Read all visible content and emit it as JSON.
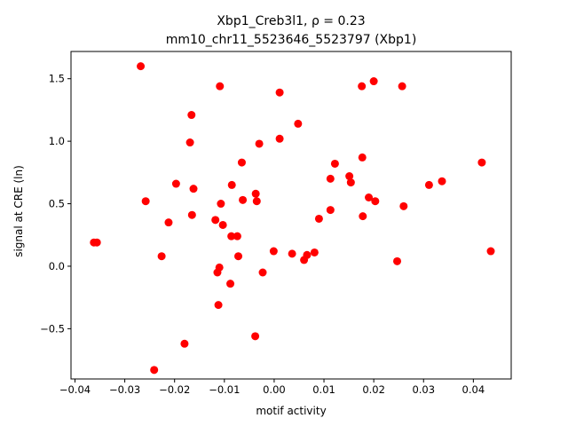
{
  "chart_data": {
    "type": "scatter",
    "title_line1": "Xbp1_Creb3l1, ρ = 0.23",
    "title_line2": "mm10_chr11_5523646_5523797 (Xbp1)",
    "xlabel": "motif activity",
    "ylabel": "signal at CRE (ln)",
    "xlim": [
      -0.0408,
      0.0476
    ],
    "ylim": [
      -0.902,
      1.718
    ],
    "grid": false,
    "marker_color": "#ff0000",
    "x_ticks": [
      -0.04,
      -0.03,
      -0.02,
      -0.01,
      0.0,
      0.01,
      0.02,
      0.03,
      0.04
    ],
    "x_tick_labels": [
      "−0.04",
      "−0.03",
      "−0.02",
      "−0.01",
      "0.00",
      "0.01",
      "0.02",
      "0.03",
      "0.04"
    ],
    "y_ticks": [
      -0.5,
      0.0,
      0.5,
      1.0,
      1.5
    ],
    "y_tick_labels": [
      "−0.5",
      "0.0",
      "0.5",
      "1.0",
      "1.5"
    ],
    "points": [
      [
        -0.0268,
        1.6
      ],
      [
        -0.0109,
        1.44
      ],
      [
        0.0011,
        1.39
      ],
      [
        0.0176,
        1.44
      ],
      [
        0.02,
        1.48
      ],
      [
        0.0257,
        1.44
      ],
      [
        -0.0166,
        1.21
      ],
      [
        0.0048,
        1.14
      ],
      [
        -0.0169,
        0.99
      ],
      [
        0.0011,
        1.02
      ],
      [
        -0.003,
        0.98
      ],
      [
        -0.0065,
        0.83
      ],
      [
        0.0122,
        0.82
      ],
      [
        0.0177,
        0.87
      ],
      [
        0.0417,
        0.83
      ],
      [
        -0.0197,
        0.66
      ],
      [
        -0.0162,
        0.62
      ],
      [
        -0.0085,
        0.65
      ],
      [
        -0.0037,
        0.58
      ],
      [
        0.0113,
        0.7
      ],
      [
        0.0151,
        0.72
      ],
      [
        0.0154,
        0.67
      ],
      [
        0.0311,
        0.65
      ],
      [
        0.0337,
        0.68
      ],
      [
        -0.0258,
        0.52
      ],
      [
        -0.0107,
        0.5
      ],
      [
        -0.0063,
        0.53
      ],
      [
        -0.0035,
        0.52
      ],
      [
        0.0113,
        0.45
      ],
      [
        0.019,
        0.55
      ],
      [
        0.0203,
        0.52
      ],
      [
        0.026,
        0.48
      ],
      [
        -0.0165,
        0.41
      ],
      [
        -0.0212,
        0.35
      ],
      [
        -0.0118,
        0.37
      ],
      [
        -0.0103,
        0.33
      ],
      [
        0.009,
        0.38
      ],
      [
        0.0178,
        0.4
      ],
      [
        -0.0086,
        0.24
      ],
      [
        -0.0074,
        0.24
      ],
      [
        -0.0001,
        0.12
      ],
      [
        0.0036,
        0.1
      ],
      [
        0.0066,
        0.09
      ],
      [
        0.0081,
        0.11
      ],
      [
        0.006,
        0.05
      ],
      [
        0.0247,
        0.04
      ],
      [
        0.0435,
        0.12
      ],
      [
        -0.0362,
        0.19
      ],
      [
        -0.0356,
        0.19
      ],
      [
        -0.0226,
        0.08
      ],
      [
        -0.0072,
        0.08
      ],
      [
        -0.011,
        -0.01
      ],
      [
        -0.0114,
        -0.05
      ],
      [
        -0.0023,
        -0.05
      ],
      [
        -0.0088,
        -0.14
      ],
      [
        -0.0112,
        -0.31
      ],
      [
        -0.0038,
        -0.56
      ],
      [
        -0.018,
        -0.62
      ],
      [
        -0.0241,
        -0.83
      ]
    ]
  }
}
